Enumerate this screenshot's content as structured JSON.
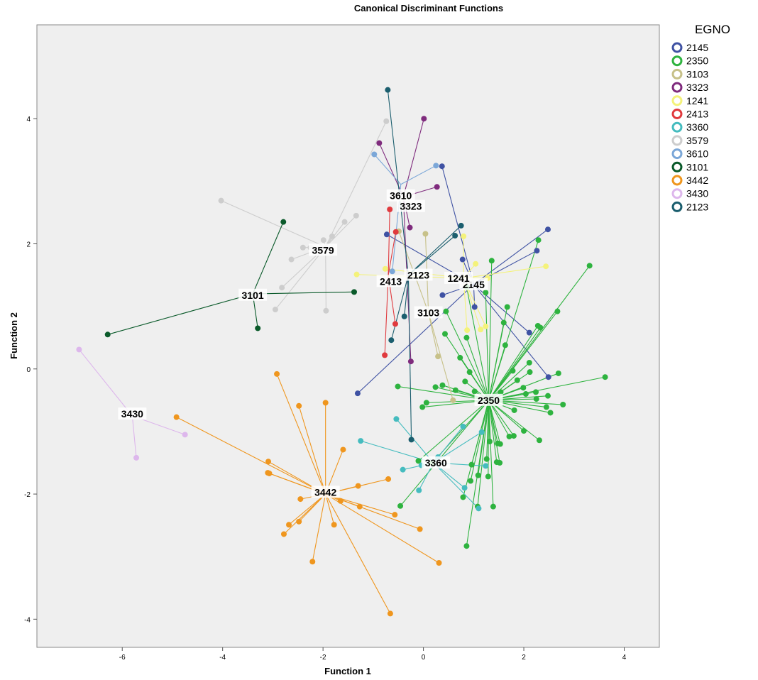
{
  "chart_data": {
    "type": "scatter",
    "title": "Canonical Discriminant Functions",
    "xlabel": "Function 1",
    "ylabel": "Function 2",
    "xlim": [
      -7.7,
      4.7
    ],
    "ylim": [
      -4.45,
      5.5
    ],
    "xticks": [
      -6,
      -4,
      -2,
      0,
      2,
      4
    ],
    "yticks": [
      -4,
      -2,
      0,
      2,
      4
    ],
    "grid": false,
    "legend_title": "EGNO",
    "legend_position": "right",
    "series": [
      {
        "name": "2145",
        "color": "#3F52A3",
        "centroid": [
          1.0,
          1.35
        ],
        "points": [
          [
            0.37,
            3.24
          ],
          [
            -0.73,
            2.15
          ],
          [
            0.78,
            1.75
          ],
          [
            0.38,
            1.18
          ],
          [
            1.02,
            0.99
          ],
          [
            2.11,
            0.58
          ],
          [
            2.49,
            -0.13
          ],
          [
            2.26,
            1.89
          ],
          [
            2.48,
            2.23
          ],
          [
            -1.31,
            -0.39
          ]
        ]
      },
      {
        "name": "2350",
        "color": "#2EB33F",
        "centroid": [
          1.3,
          -0.5
        ],
        "points": [
          [
            1.36,
            1.73
          ],
          [
            2.29,
            2.06
          ],
          [
            3.31,
            1.65
          ],
          [
            0.45,
            0.92
          ],
          [
            0.86,
            1.31
          ],
          [
            1.24,
            1.22
          ],
          [
            1.67,
            0.99
          ],
          [
            2.67,
            0.92
          ],
          [
            1.6,
            0.74
          ],
          [
            2.28,
            0.69
          ],
          [
            2.33,
            0.66
          ],
          [
            1.63,
            0.38
          ],
          [
            0.86,
            0.5
          ],
          [
            0.73,
            0.18
          ],
          [
            0.43,
            0.56
          ],
          [
            0.92,
            -0.05
          ],
          [
            2.12,
            -0.05
          ],
          [
            0.83,
            -0.2
          ],
          [
            1.78,
            -0.03
          ],
          [
            2.11,
            0.1
          ],
          [
            2.69,
            -0.07
          ],
          [
            1.87,
            -0.18
          ],
          [
            1.99,
            -0.3
          ],
          [
            -0.51,
            -0.28
          ],
          [
            0.06,
            -0.54
          ],
          [
            -0.02,
            -0.61
          ],
          [
            0.24,
            -0.29
          ],
          [
            0.38,
            -0.26
          ],
          [
            0.64,
            -0.34
          ],
          [
            1.02,
            -0.36
          ],
          [
            1.54,
            -0.37
          ],
          [
            2.04,
            -0.4
          ],
          [
            2.24,
            -0.37
          ],
          [
            2.48,
            -0.43
          ],
          [
            2.25,
            -0.48
          ],
          [
            2.45,
            -0.61
          ],
          [
            2.53,
            -0.7
          ],
          [
            2.78,
            -0.57
          ],
          [
            3.62,
            -0.13
          ],
          [
            1.81,
            -0.66
          ],
          [
            2.0,
            -0.99
          ],
          [
            1.8,
            -1.07
          ],
          [
            1.71,
            -1.08
          ],
          [
            2.31,
            -1.14
          ],
          [
            1.48,
            -1.19
          ],
          [
            1.53,
            -1.2
          ],
          [
            1.32,
            -1.16
          ],
          [
            1.46,
            -1.49
          ],
          [
            1.52,
            -1.5
          ],
          [
            0.96,
            -1.53
          ],
          [
            1.26,
            -1.44
          ],
          [
            1.29,
            -1.72
          ],
          [
            1.09,
            -1.7
          ],
          [
            0.94,
            -1.79
          ],
          [
            1.08,
            -2.2
          ],
          [
            1.39,
            -2.2
          ],
          [
            0.79,
            -2.05
          ],
          [
            0.86,
            -2.83
          ],
          [
            -0.46,
            -2.19
          ],
          [
            -0.1,
            -1.47
          ],
          [
            0.18,
            -1.5
          ]
        ]
      },
      {
        "name": "3103",
        "color": "#C7C189",
        "centroid": [
          0.1,
          0.9
        ],
        "points": [
          [
            -0.49,
            2.2
          ],
          [
            0.04,
            2.16
          ],
          [
            0.29,
            0.2
          ],
          [
            0.59,
            -0.5
          ]
        ]
      },
      {
        "name": "3323",
        "color": "#7F2B7D",
        "centroid": [
          -0.4,
          2.75
        ],
        "points": [
          [
            -0.88,
            3.61
          ],
          [
            0.01,
            4.0
          ],
          [
            0.27,
            2.91
          ],
          [
            -0.27,
            2.26
          ],
          [
            -0.25,
            0.12
          ]
        ]
      },
      {
        "name": "1241",
        "color": "#F4F27B",
        "centroid": [
          0.8,
          1.45
        ],
        "points": [
          [
            -1.33,
            1.51
          ],
          [
            -0.76,
            1.6
          ],
          [
            0.8,
            2.12
          ],
          [
            1.04,
            1.68
          ],
          [
            2.44,
            1.64
          ],
          [
            0.82,
            1.45
          ],
          [
            1.28,
            1.45
          ],
          [
            1.24,
            0.68
          ],
          [
            1.14,
            0.63
          ],
          [
            0.87,
            0.62
          ]
        ]
      },
      {
        "name": "2413",
        "color": "#E03A3E",
        "centroid": [
          -0.7,
          1.5
        ],
        "points": [
          [
            -0.67,
            2.55
          ],
          [
            -0.55,
            2.19
          ],
          [
            -0.56,
            0.72
          ],
          [
            -0.77,
            0.22
          ]
        ]
      },
      {
        "name": "3360",
        "color": "#45BCBF",
        "centroid": [
          0.2,
          -1.5
        ],
        "points": [
          [
            -1.25,
            -1.15
          ],
          [
            -0.54,
            -0.8
          ],
          [
            -0.41,
            -1.61
          ],
          [
            -0.09,
            -1.94
          ],
          [
            -0.04,
            -1.54
          ],
          [
            0.29,
            -1.41
          ],
          [
            0.82,
            -1.9
          ],
          [
            1.1,
            -2.23
          ],
          [
            1.24,
            -1.55
          ],
          [
            0.79,
            -0.92
          ],
          [
            1.16,
            -1.01
          ]
        ]
      },
      {
        "name": "3579",
        "color": "#CDCDCD",
        "centroid": [
          -1.95,
          1.95
        ],
        "points": [
          [
            -4.03,
            2.69
          ],
          [
            -2.82,
            1.3
          ],
          [
            -2.95,
            0.95
          ],
          [
            -2.63,
            1.75
          ],
          [
            -2.4,
            1.94
          ],
          [
            -2.25,
            1.94
          ],
          [
            -1.99,
            2.06
          ],
          [
            -1.82,
            2.12
          ],
          [
            -1.57,
            2.35
          ],
          [
            -1.34,
            2.45
          ],
          [
            -1.94,
            0.93
          ],
          [
            -0.74,
            3.96
          ]
        ]
      },
      {
        "name": "3610",
        "color": "#7BA7D8",
        "centroid": [
          -0.45,
          2.95
        ],
        "points": [
          [
            -0.98,
            3.43
          ],
          [
            0.25,
            3.25
          ],
          [
            -0.62,
            1.56
          ]
        ]
      },
      {
        "name": "3101",
        "color": "#0A5A2A",
        "centroid": [
          -3.4,
          1.2
        ],
        "points": [
          [
            -2.79,
            2.35
          ],
          [
            -6.29,
            0.55
          ],
          [
            -3.3,
            0.65
          ],
          [
            -1.38,
            1.23
          ]
        ]
      },
      {
        "name": "3442",
        "color": "#EF961E",
        "centroid": [
          -1.95,
          -2.0
        ],
        "points": [
          [
            -2.92,
            -0.08
          ],
          [
            -2.48,
            -0.59
          ],
          [
            -1.95,
            -0.54
          ],
          [
            -4.92,
            -0.77
          ],
          [
            -3.09,
            -1.48
          ],
          [
            -3.1,
            -1.66
          ],
          [
            -3.07,
            -1.67
          ],
          [
            -1.6,
            -1.29
          ],
          [
            -0.7,
            -1.76
          ],
          [
            -1.3,
            -1.87
          ],
          [
            -2.45,
            -2.08
          ],
          [
            -1.65,
            -2.11
          ],
          [
            -1.27,
            -2.2
          ],
          [
            -0.57,
            -2.33
          ],
          [
            -2.68,
            -2.49
          ],
          [
            -2.48,
            -2.44
          ],
          [
            -1.78,
            -2.49
          ],
          [
            -2.78,
            -2.64
          ],
          [
            -0.07,
            -2.56
          ],
          [
            -2.21,
            -3.08
          ],
          [
            0.31,
            -3.1
          ],
          [
            -0.66,
            -3.91
          ]
        ]
      },
      {
        "name": "3430",
        "color": "#DDB7EC",
        "centroid": [
          -5.8,
          -0.75
        ],
        "points": [
          [
            -6.86,
            0.31
          ],
          [
            -4.75,
            -1.05
          ],
          [
            -5.72,
            -1.42
          ]
        ]
      },
      {
        "name": "2123",
        "color": "#1B5E6E",
        "centroid": [
          -0.3,
          1.5
        ],
        "points": [
          [
            -0.71,
            4.46
          ],
          [
            0.75,
            2.29
          ],
          [
            0.63,
            2.13
          ],
          [
            -0.38,
            0.84
          ],
          [
            -0.64,
            0.46
          ],
          [
            -0.24,
            -1.13
          ]
        ]
      }
    ],
    "centroid_labels": [
      {
        "text": "2145",
        "x": 1.0,
        "y": 1.35
      },
      {
        "text": "2350",
        "x": 1.3,
        "y": -0.5
      },
      {
        "text": "3103",
        "x": 0.1,
        "y": 0.9
      },
      {
        "text": "3323",
        "x": -0.25,
        "y": 2.6
      },
      {
        "text": "1241",
        "x": 0.7,
        "y": 1.45
      },
      {
        "text": "2413",
        "x": -0.65,
        "y": 1.4
      },
      {
        "text": "3360",
        "x": 0.25,
        "y": -1.5
      },
      {
        "text": "3579",
        "x": -2.0,
        "y": 1.9
      },
      {
        "text": "3610",
        "x": -0.45,
        "y": 2.77
      },
      {
        "text": "3101",
        "x": -3.4,
        "y": 1.18
      },
      {
        "text": "3442",
        "x": -1.95,
        "y": -1.97
      },
      {
        "text": "3430",
        "x": -5.8,
        "y": -0.72
      },
      {
        "text": "2123",
        "x": -0.1,
        "y": 1.5
      }
    ]
  }
}
